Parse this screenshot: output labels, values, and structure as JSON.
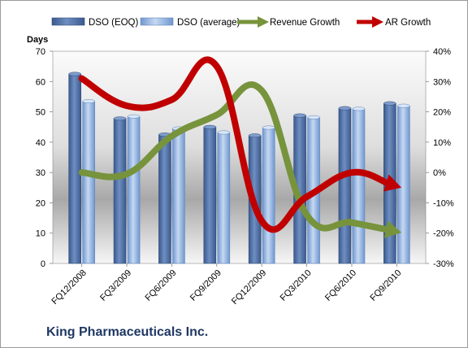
{
  "chart_data": {
    "type": "bar",
    "title": "King Pharmaceuticals Inc.",
    "categories": [
      "FQ12/2008",
      "FQ3/2009",
      "FQ6/2009",
      "FQ9/2009",
      "FQ12/2009",
      "FQ3/2010",
      "FQ6/2010",
      "FQ9/2010"
    ],
    "series": [
      {
        "name": "DSO (EOQ)",
        "kind": "bar",
        "axis": "left",
        "color": "#4f6fa3",
        "values": [
          62.5,
          47.8,
          42.5,
          45.0,
          42.2,
          48.8,
          51.2,
          52.8
        ]
      },
      {
        "name": "DSO (average)",
        "kind": "bar",
        "axis": "left",
        "color": "#8fb2e0",
        "values": [
          53.5,
          48.5,
          44.5,
          43.2,
          44.8,
          48.2,
          51.0,
          52.0
        ]
      },
      {
        "name": "Revenue Growth",
        "kind": "line",
        "axis": "right",
        "color": "#77933c",
        "unit": "%",
        "values": [
          0,
          -0.5,
          12,
          19,
          27,
          -14,
          -16.5,
          -19.5
        ]
      },
      {
        "name": "AR Growth",
        "kind": "line",
        "axis": "right",
        "color": "#c00000",
        "unit": "%",
        "values": [
          31,
          22,
          24,
          35,
          -16,
          -8,
          0,
          -4.5
        ]
      }
    ],
    "ylabel": "Days",
    "ylim": [
      0,
      70
    ],
    "yticks": [
      "0",
      "10",
      "20",
      "30",
      "40",
      "50",
      "60",
      "70"
    ],
    "y2lim": [
      -30,
      40
    ],
    "y2ticks": [
      "-30%",
      "-20%",
      "-10%",
      "0%",
      "10%",
      "20%",
      "30%",
      "40%"
    ],
    "legend_position": "top",
    "grid": false
  }
}
